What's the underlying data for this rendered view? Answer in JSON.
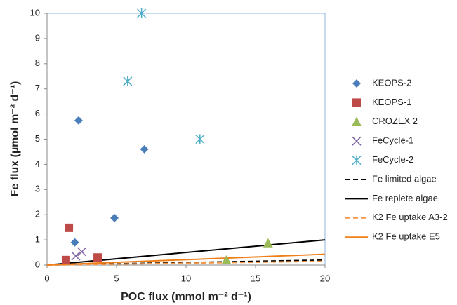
{
  "chart_data": {
    "type": "scatter",
    "x_label": "POC flux (mmol m⁻² d⁻¹)",
    "y_label": "Fe flux (µmol m⁻² d⁻¹)",
    "xlim": [
      0,
      20
    ],
    "xticks": [
      0,
      5,
      10,
      15,
      20
    ],
    "ylim": [
      0,
      10
    ],
    "yticks": [
      0,
      1,
      2,
      3,
      4,
      5,
      6,
      7,
      8,
      9,
      10
    ],
    "series": [
      {
        "name": "KEOPS-2",
        "color": "#4a7ebb",
        "marker": "diamond",
        "x": [
          2.27,
          7.0,
          4.85,
          2.0
        ],
        "values": [
          5.74,
          4.6,
          1.87,
          0.9
        ]
      },
      {
        "name": "KEOPS-1",
        "color": "#be4b48",
        "marker": "square",
        "x": [
          1.57,
          1.36,
          3.64
        ],
        "values": [
          1.48,
          0.2,
          0.3
        ]
      },
      {
        "name": "CROZEX 2",
        "color": "#9bbb59",
        "marker": "triangle",
        "x": [
          12.9,
          15.9
        ],
        "values": [
          0.2,
          0.87
        ]
      },
      {
        "name": "FeCycle-1",
        "color": "#8064a2",
        "marker": "cross",
        "x": [
          2.07,
          2.5
        ],
        "values": [
          0.36,
          0.53
        ]
      },
      {
        "name": "FeCycle-2",
        "color": "#4bacc6",
        "marker": "asterisk",
        "x": [
          6.8,
          5.8,
          11.0
        ],
        "values": [
          10,
          7.3,
          5.0
        ]
      },
      {
        "name": "Fe limited algae",
        "color": "#000000",
        "line": "dashed",
        "x": [
          0,
          20
        ],
        "values": [
          0,
          0.2
        ]
      },
      {
        "name": "Fe replete algae",
        "color": "#000000",
        "line": "solid",
        "x": [
          0,
          20
        ],
        "values": [
          0,
          1.0
        ]
      },
      {
        "name": "K2 Fe uptake A3-2",
        "color": "#f79646",
        "line": "dashed",
        "x": [
          0,
          20
        ],
        "values": [
          0,
          0.15
        ]
      },
      {
        "name": "K2 Fe uptake E5",
        "color": "#f07f1a",
        "line": "solid",
        "x": [
          0,
          20
        ],
        "values": [
          0,
          0.43
        ]
      }
    ]
  }
}
